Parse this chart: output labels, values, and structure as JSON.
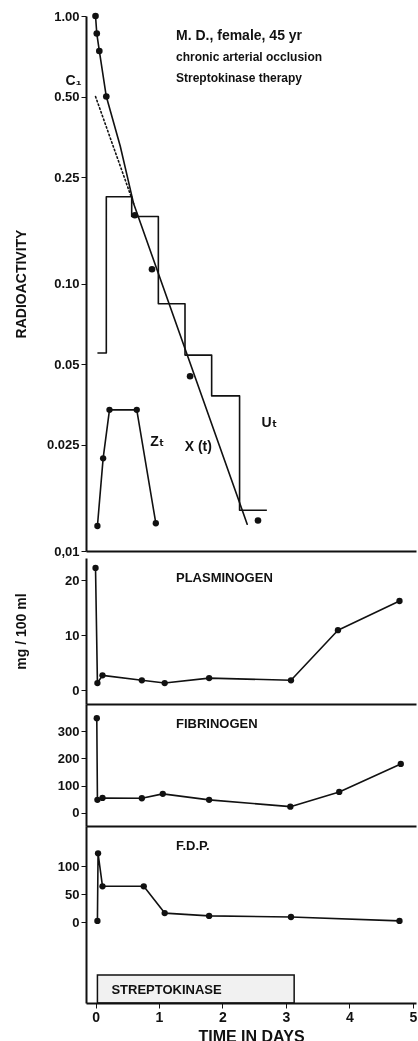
{
  "chart_data": [
    {
      "type": "line",
      "ylabel": "RADIOACTIVITY",
      "log": true,
      "xlim": [
        -0.15,
        5.05
      ],
      "ylim": [
        0.01,
        1
      ],
      "tick_labels": "y",
      "yticks": [
        {
          "value": 1,
          "label": "1.00"
        },
        {
          "value": 0.5,
          "label": "0.50"
        },
        {
          "value": 0.25,
          "label": "0.25"
        },
        {
          "value": 0.1,
          "label": "0.10"
        },
        {
          "value": 0.05,
          "label": "0.05"
        },
        {
          "value": 0.025,
          "label": "0.025"
        },
        {
          "value": 0.01,
          "label": "0,01"
        }
      ],
      "series": [
        {
          "color": "#111111",
          "x": [
            0,
            0.02,
            0.06,
            0.17,
            0.39,
            0.6,
            2.39
          ],
          "values": [
            1.0,
            0.86,
            0.74,
            0.5,
            0.326,
            0.199,
            0.0126
          ]
        },
        {
          "color": "#111111",
          "line_style": "dotted",
          "x": [
            0,
            0.6
          ],
          "values": [
            0.5,
            0.199
          ]
        },
        {
          "type": "scatter",
          "color": "#111111",
          "marker": "circle",
          "x": [
            0,
            0.02,
            0.06,
            0.17,
            0.62,
            0.89,
            1.49,
            2.56
          ],
          "values": [
            1.0,
            0.86,
            0.74,
            0.5,
            0.18,
            0.113,
            0.045,
            0.013
          ]
        },
        {
          "color": "#111111",
          "marker": "circle",
          "x": [
            0.03,
            0.12,
            0.22,
            0.65,
            0.95
          ],
          "values": [
            0.0124,
            0.0222,
            0.0337,
            0.0337,
            0.0127
          ]
        },
        {
          "type": "step",
          "color": "#111111",
          "x": [
            0.03,
            0.17,
            0.57,
            0.99,
            1.41,
            1.83,
            2.27,
            2.7
          ],
          "values": [
            0.055,
            0.211,
            0.178,
            0.084,
            0.054,
            0.038,
            0.0142,
            0.0142
          ]
        }
      ],
      "annotations": [
        "M. D., female, 45 yr",
        "chronic arterial occlusion",
        "Streptokinase therapy",
        {
          "text": "C₁",
          "x": 0,
          "y": 0.5
        },
        {
          "text": "Zₜ",
          "x": 0.735,
          "y": 0.0255
        },
        {
          "text": "X (t)",
          "x": 1.96,
          "y": 0.0244
        },
        {
          "text": "Uₜ",
          "x": 2.27,
          "y": 0.03
        }
      ]
    },
    {
      "type": "line",
      "title": "PLASMINOGEN",
      "ylabel": "mg / 100 ml",
      "xlim": [
        -0.15,
        5.05
      ],
      "ylim": [
        -2.5,
        24
      ],
      "yticks": [
        0,
        10,
        20
      ],
      "tick_labels": "y",
      "marker": "circle",
      "series": [
        {
          "color": "#111111",
          "x": [
            0,
            0.03,
            0.11,
            0.73,
            1.09,
            1.79,
            3.08,
            3.82,
            4.79
          ],
          "values": [
            22.2,
            1.3,
            2.7,
            1.8,
            1.3,
            2.2,
            1.8,
            10.9,
            16.2
          ]
        }
      ]
    },
    {
      "type": "line",
      "title": "FIBRINOGEN",
      "xlim": [
        -0.15,
        5.05
      ],
      "ylim": [
        -48,
        400
      ],
      "yticks": [
        0,
        100,
        200,
        300
      ],
      "tick_labels": "y",
      "marker": "circle",
      "series": [
        {
          "color": "#111111",
          "x": [
            0.02,
            0.03,
            0.11,
            0.73,
            1.06,
            1.79,
            3.07,
            3.84,
            4.81
          ],
          "values": [
            348,
            48,
            55,
            54,
            70,
            48,
            23,
            77,
            180
          ]
        }
      ]
    },
    {
      "type": "line",
      "title": "F.D.P.",
      "xlabel": "TIME IN DAYS",
      "xlim": [
        -0.15,
        5.05
      ],
      "xticks": [
        0,
        1,
        2,
        3,
        4,
        5
      ],
      "ylim": [
        -145,
        172
      ],
      "yticks": [
        0,
        50,
        100
      ],
      "marker": "circle",
      "series": [
        {
          "color": "#111111",
          "x": [
            0.03,
            0.04,
            0.11,
            0.76,
            1.09,
            1.79,
            3.08,
            4.79
          ],
          "values": [
            2,
            123,
            64,
            64,
            16,
            11,
            9,
            2
          ]
        }
      ],
      "bands": [
        {
          "axis": "x",
          "from": 0.03,
          "to": 3.13,
          "label": "STREPTOKINASE"
        }
      ]
    }
  ]
}
